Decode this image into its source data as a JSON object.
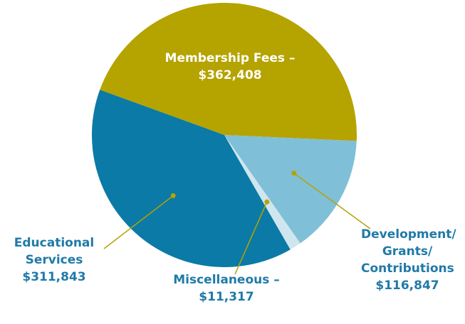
{
  "chart_data": {
    "type": "pie",
    "categories": [
      "Membership Fees –",
      "Development/ Grants/ Contributions",
      "Miscellaneous –",
      "Educational Services"
    ],
    "values": [
      362408,
      116847,
      11317,
      311843
    ],
    "value_labels": [
      "$362,408",
      "$116,847",
      "$11,317",
      "$311,843"
    ],
    "colors": [
      "#b5a300",
      "#80bfd8",
      "#cfe6ef",
      "#0b7aa6"
    ]
  }
}
